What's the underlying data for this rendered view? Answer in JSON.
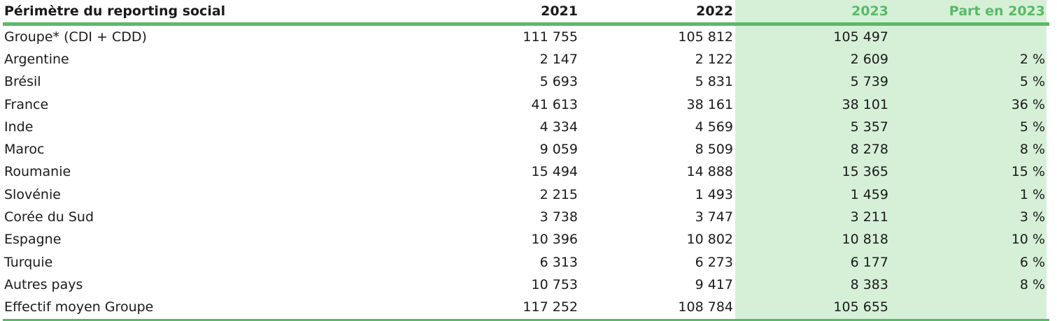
{
  "headers": {
    "label": "Périmètre du reporting social",
    "y2021": "2021",
    "y2022": "2022",
    "y2023": "2023",
    "part": "Part en 2023"
  },
  "colors": {
    "accent": "#5ab968",
    "highlight_bg": "#d6f0d8",
    "text": "#1a1a1a"
  },
  "rows": [
    {
      "label": "Groupe* (CDI + CDD)",
      "y2021": "111 755",
      "y2022": "105 812",
      "y2023": "105 497",
      "part": ""
    },
    {
      "label": "Argentine",
      "y2021": "2 147",
      "y2022": "2 122",
      "y2023": "2 609",
      "part": "2 %"
    },
    {
      "label": "Brésil",
      "y2021": "5 693",
      "y2022": "5 831",
      "y2023": "5 739",
      "part": "5 %"
    },
    {
      "label": "France",
      "y2021": "41 613",
      "y2022": "38 161",
      "y2023": "38 101",
      "part": "36 %"
    },
    {
      "label": "Inde",
      "y2021": "4 334",
      "y2022": "4 569",
      "y2023": "5 357",
      "part": "5 %"
    },
    {
      "label": "Maroc",
      "y2021": "9 059",
      "y2022": "8 509",
      "y2023": "8 278",
      "part": "8 %"
    },
    {
      "label": "Roumanie",
      "y2021": "15 494",
      "y2022": "14 888",
      "y2023": "15 365",
      "part": "15 %"
    },
    {
      "label": "Slovénie",
      "y2021": "2 215",
      "y2022": "1 493",
      "y2023": "1 459",
      "part": "1 %"
    },
    {
      "label": "Corée du Sud",
      "y2021": "3 738",
      "y2022": "3 747",
      "y2023": "3 211",
      "part": "3 %"
    },
    {
      "label": "Espagne",
      "y2021": "10 396",
      "y2022": "10 802",
      "y2023": "10 818",
      "part": "10 %"
    },
    {
      "label": "Turquie",
      "y2021": "6 313",
      "y2022": "6 273",
      "y2023": "6 177",
      "part": "6 %"
    },
    {
      "label": "Autres pays",
      "y2021": "10 753",
      "y2022": "9 417",
      "y2023": "8 383",
      "part": "8 %"
    },
    {
      "label": "Effectif moyen Groupe",
      "y2021": "117 252",
      "y2022": "108 784",
      "y2023": "105 655",
      "part": ""
    }
  ]
}
